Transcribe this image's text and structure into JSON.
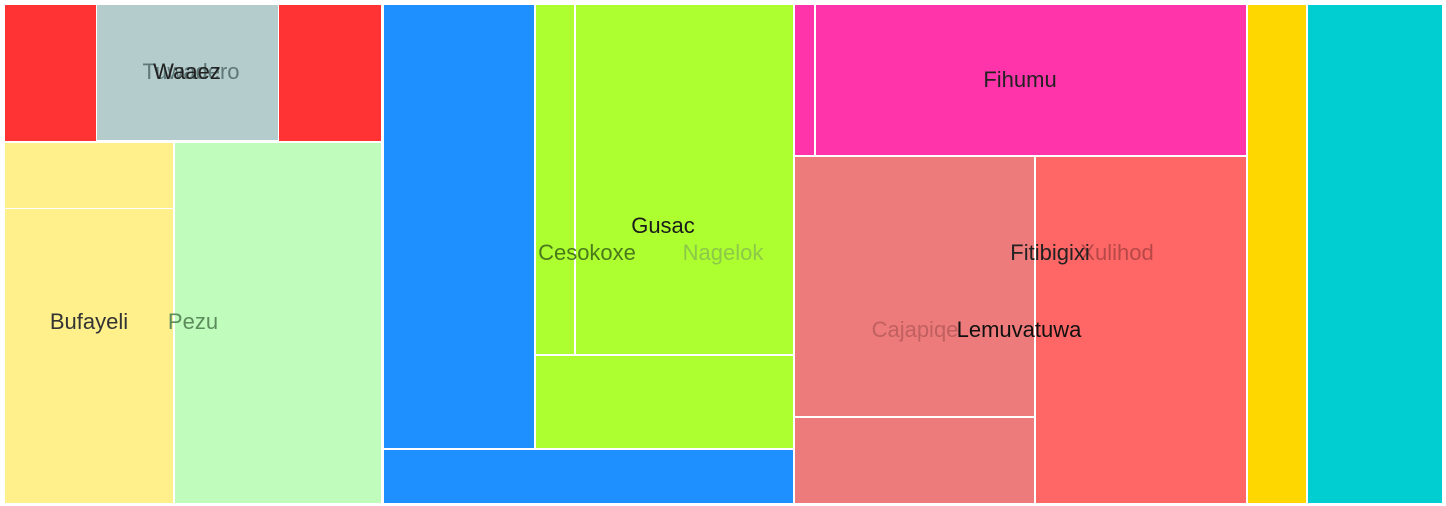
{
  "chart_data": {
    "type": "treemap",
    "cells": [
      {
        "id": "red-block",
        "label": "",
        "color": "#ff3333"
      },
      {
        "id": "gray-block",
        "label": "",
        "color": "#b4cccc"
      },
      {
        "id": "yellow-top",
        "label": "",
        "color": "#fff08c"
      },
      {
        "id": "bufayeli",
        "label": "Bufayeli",
        "color": "#fff08c",
        "label_color": "#333333"
      },
      {
        "id": "pezu",
        "label": "Pezu",
        "color": "#c0fcbc",
        "label_color": "#5c8c5c"
      },
      {
        "id": "blue-tall",
        "label": "",
        "color": "#1e90ff"
      },
      {
        "id": "blue-bottom",
        "label": "",
        "color": "#1e90ff"
      },
      {
        "id": "cesokoxe",
        "label": "Cesokoxe",
        "color": "#adff2f",
        "label_color": "#4a7a1a"
      },
      {
        "id": "nagelok",
        "label": "Nagelok",
        "color": "#adff2f",
        "label_color": "#8cc84a"
      },
      {
        "id": "lime-bottom",
        "label": "",
        "color": "#adff2f"
      },
      {
        "id": "magenta-strip",
        "label": "",
        "color": "#ff33aa"
      },
      {
        "id": "fihumu",
        "label": "Fihumu",
        "color": "#ff33aa",
        "label_color": "#222222"
      },
      {
        "id": "cajapiqe",
        "label": "Cajapiqe",
        "color": "#ee7b7b",
        "label_color": "#c06060"
      },
      {
        "id": "salmon-bottom",
        "label": "",
        "color": "#ee7b7b"
      },
      {
        "id": "xulihod",
        "label": "Xulihod",
        "color": "#ff6666",
        "label_color": "#b84848"
      },
      {
        "id": "gold",
        "label": "",
        "color": "#ffd700"
      },
      {
        "id": "teal",
        "label": "",
        "color": "#00ced1"
      }
    ],
    "overlay_labels": [
      {
        "id": "tuwadero",
        "text": "Tuwadero",
        "color": "#5f7777"
      },
      {
        "id": "waaez",
        "text": "Waaez",
        "color": "#222222"
      },
      {
        "id": "gusac",
        "text": "Gusac",
        "color": "#1a1a1a"
      },
      {
        "id": "fitibigixi",
        "text": "Fitibigixi",
        "color": "#222222"
      },
      {
        "id": "lemuvatuwa",
        "text": "Lemuvatuwa",
        "color": "#111111"
      }
    ]
  }
}
